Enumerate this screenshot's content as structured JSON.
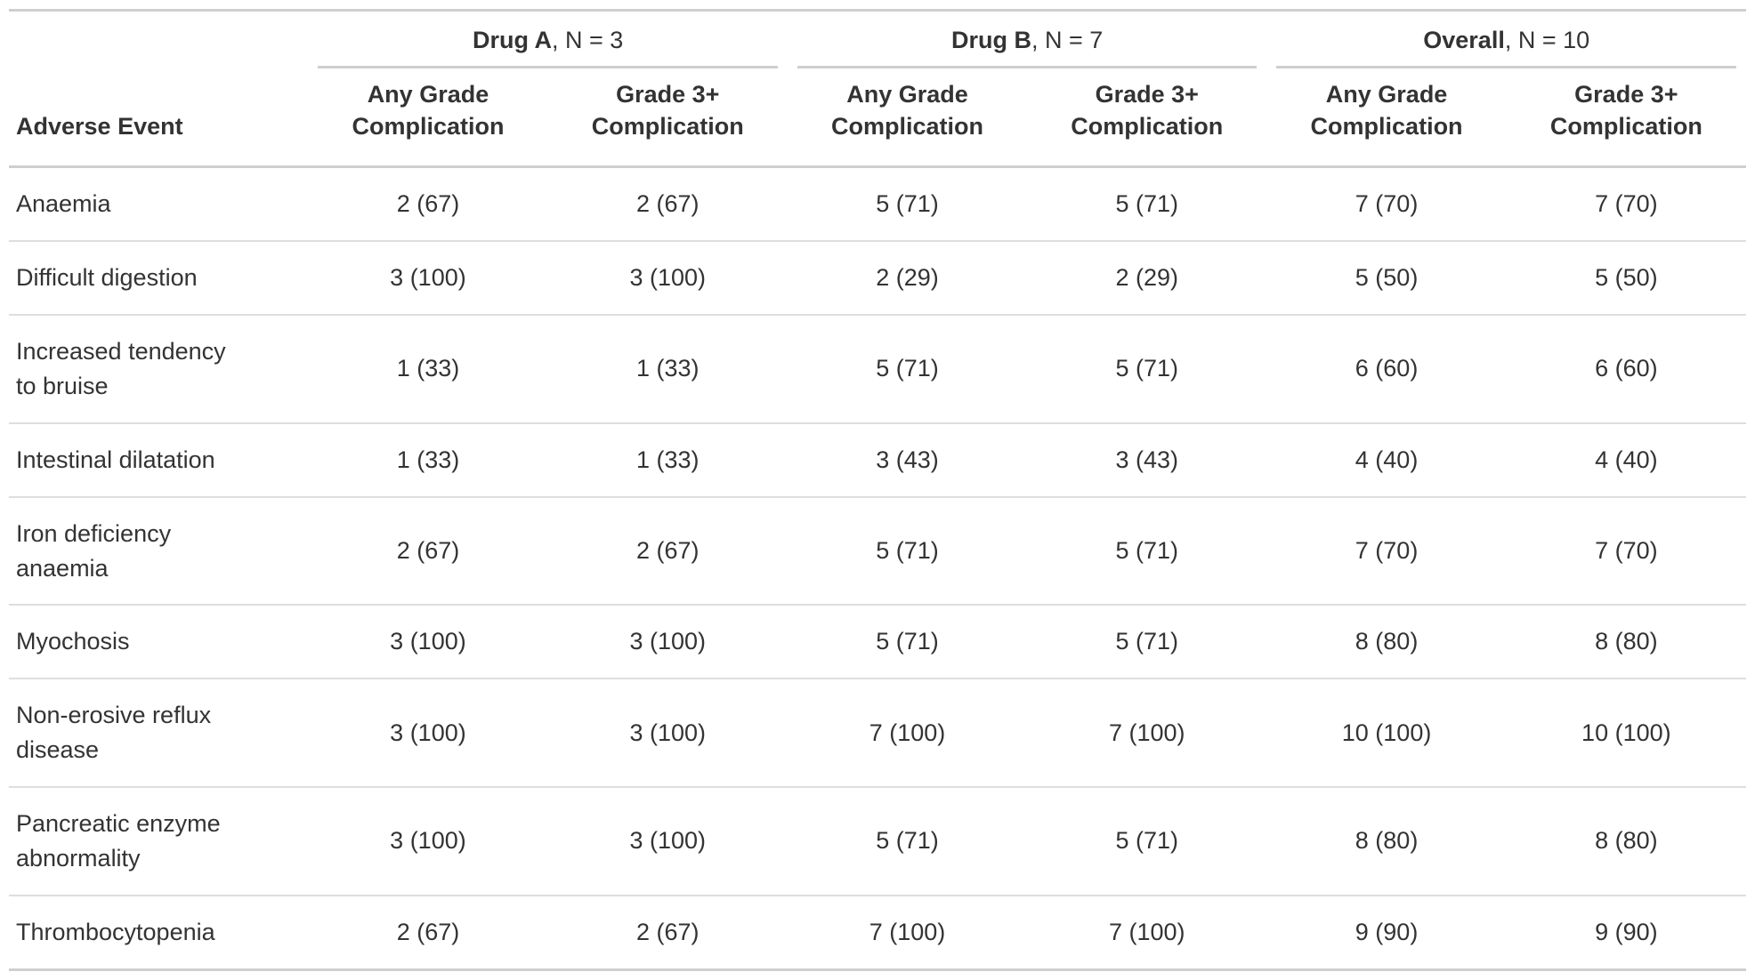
{
  "colors": {
    "text": "#333333",
    "border_heavy": "#CFCFCF",
    "border_light": "#DEDEDE",
    "background": "#ffffff"
  },
  "chart_data": {
    "type": "table",
    "stub_header": "Adverse Event",
    "spanners": [
      {
        "name": "Drug A",
        "rest": ", N = 3"
      },
      {
        "name": "Drug B",
        "rest": ", N = 7"
      },
      {
        "name": "Overall",
        "rest": ", N = 10"
      }
    ],
    "col_labels": [
      "Any Grade Complication",
      "Grade 3+ Complication",
      "Any Grade Complication",
      "Grade 3+ Complication",
      "Any Grade Complication",
      "Grade 3+ Complication"
    ],
    "rows": [
      {
        "event": "Anaemia",
        "values": [
          "2 (67)",
          "2 (67)",
          "5 (71)",
          "5 (71)",
          "7 (70)",
          "7 (70)"
        ]
      },
      {
        "event": "Difficult digestion",
        "values": [
          "3 (100)",
          "3 (100)",
          "2 (29)",
          "2 (29)",
          "5 (50)",
          "5 (50)"
        ]
      },
      {
        "event": "Increased tendency to bruise",
        "values": [
          "1 (33)",
          "1 (33)",
          "5 (71)",
          "5 (71)",
          "6 (60)",
          "6 (60)"
        ]
      },
      {
        "event": "Intestinal dilatation",
        "values": [
          "1 (33)",
          "1 (33)",
          "3 (43)",
          "3 (43)",
          "4 (40)",
          "4 (40)"
        ]
      },
      {
        "event": "Iron deficiency anaemia",
        "values": [
          "2 (67)",
          "2 (67)",
          "5 (71)",
          "5 (71)",
          "7 (70)",
          "7 (70)"
        ]
      },
      {
        "event": "Myochosis",
        "values": [
          "3 (100)",
          "3 (100)",
          "5 (71)",
          "5 (71)",
          "8 (80)",
          "8 (80)"
        ]
      },
      {
        "event": "Non-erosive reflux disease",
        "values": [
          "3 (100)",
          "3 (100)",
          "7 (100)",
          "7 (100)",
          "10 (100)",
          "10 (100)"
        ]
      },
      {
        "event": "Pancreatic enzyme abnormality",
        "values": [
          "3 (100)",
          "3 (100)",
          "5 (71)",
          "5 (71)",
          "8 (80)",
          "8 (80)"
        ]
      },
      {
        "event": "Thrombocytopenia",
        "values": [
          "2 (67)",
          "2 (67)",
          "7 (100)",
          "7 (100)",
          "9 (90)",
          "9 (90)"
        ]
      }
    ]
  }
}
